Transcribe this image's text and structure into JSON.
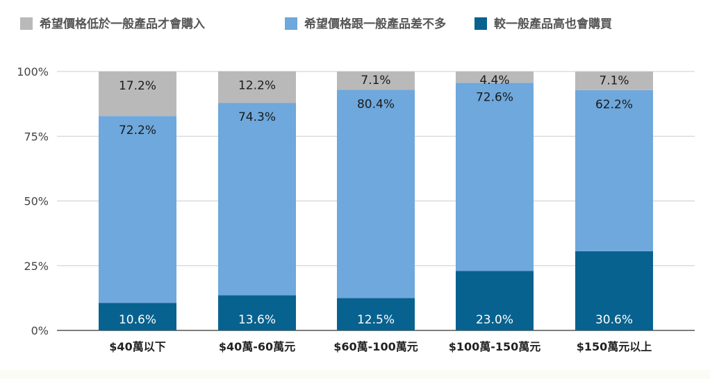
{
  "chart_data": {
    "type": "bar",
    "stacked": true,
    "percent_stacked": true,
    "categories": [
      "$40萬以下",
      "$40萬-60萬元",
      "$60萬-100萬元",
      "$100萬-150萬元",
      "$150萬元以上"
    ],
    "series": [
      {
        "name": "較一般產品高也會購買",
        "color": "#08628f",
        "values": [
          10.6,
          13.6,
          12.5,
          23.0,
          30.6
        ]
      },
      {
        "name": "希望價格跟一般產品差不多",
        "color": "#6ea8dc",
        "values": [
          72.2,
          74.3,
          80.4,
          72.6,
          62.2
        ]
      },
      {
        "name": "希望價格低於一般產品才會購入",
        "color": "#b9b9b9",
        "values": [
          17.2,
          12.2,
          7.1,
          4.4,
          7.1
        ]
      }
    ],
    "data_labels": {
      "bottom": [
        "10.6%",
        "13.6%",
        "12.5%",
        "23.0%",
        "30.6%"
      ],
      "middle": [
        "72.2%",
        "74.3%",
        "80.4%",
        "72.6%",
        "62.2%"
      ],
      "top": [
        "17.2%",
        "12.2%",
        "7.1%",
        "4.4%",
        "7.1%"
      ]
    },
    "legend_order": [
      "希望價格低於一般產品才會購入",
      "希望價格跟一般產品差不多",
      "較一般產品高也會購買"
    ],
    "legend_position": "top",
    "y_ticks": [
      "0%",
      "25%",
      "50%",
      "75%",
      "100%"
    ],
    "ylim": [
      0,
      100
    ],
    "xlabel": "",
    "ylabel": "",
    "title": "",
    "grid": true
  }
}
